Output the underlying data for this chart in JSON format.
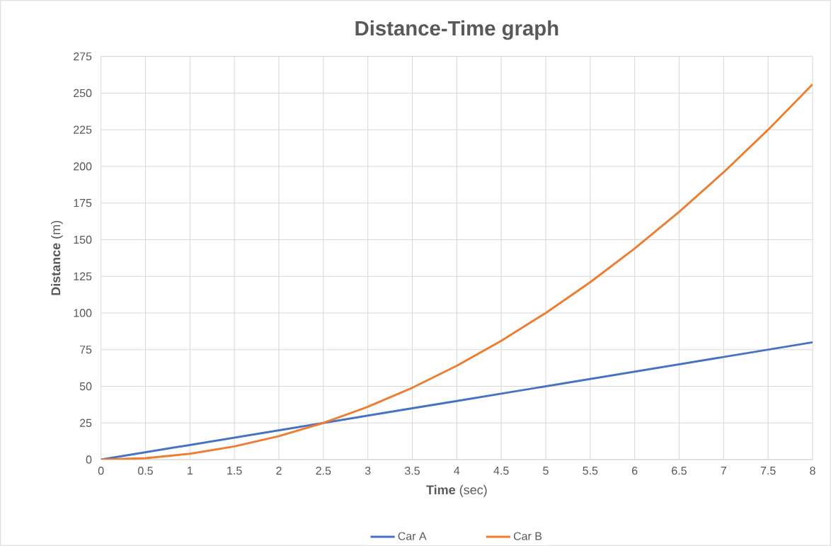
{
  "chart_data": {
    "type": "line",
    "title": "Distance-Time graph",
    "xlabel": "**Time** (sec)",
    "ylabel": "**Distance** (m)",
    "x": [
      0,
      0.5,
      1,
      1.5,
      2,
      2.5,
      3,
      3.5,
      4,
      4.5,
      5,
      5.5,
      6,
      6.5,
      7,
      7.5,
      8
    ],
    "series": [
      {
        "name": "Car A",
        "color": "#4472c4",
        "values": [
          0,
          5,
          10,
          15,
          20,
          25,
          30,
          35,
          40,
          45,
          50,
          55,
          60,
          65,
          70,
          75,
          80
        ]
      },
      {
        "name": "Car B",
        "color": "#ed7d31",
        "values": [
          0,
          1,
          4,
          9,
          16,
          25,
          36,
          49,
          64,
          81,
          100,
          121,
          144,
          169,
          196,
          225,
          256
        ]
      }
    ],
    "xlim": [
      0,
      8
    ],
    "xticks": [
      0,
      0.5,
      1,
      1.5,
      2,
      2.5,
      3,
      3.5,
      4,
      4.5,
      5,
      5.5,
      6,
      6.5,
      7,
      7.5,
      8
    ],
    "ylim": [
      0,
      275
    ],
    "yticks": [
      0,
      25,
      50,
      75,
      100,
      125,
      150,
      175,
      200,
      225,
      250,
      275
    ],
    "grid": true,
    "legend": "bottom",
    "marker": "none",
    "line_style": "solid"
  }
}
